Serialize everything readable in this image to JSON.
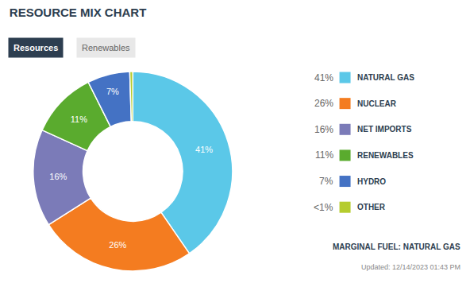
{
  "chart_data": {
    "type": "donut",
    "title": "RESOURCE MIX CHART",
    "tabs": [
      "Resources",
      "Renewables"
    ],
    "categories": [
      "NATURAL GAS",
      "NUCLEAR",
      "NET IMPORTS",
      "RENEWABLES",
      "HYDRO",
      "OTHER"
    ],
    "values": [
      41,
      26,
      16,
      11,
      7,
      0.5
    ],
    "value_labels": [
      "41%",
      "26%",
      "16%",
      "11%",
      "7%",
      "<1%"
    ],
    "colors": [
      "#5bc8e8",
      "#f47c20",
      "#7b7bb8",
      "#5aab2e",
      "#4472c4",
      "#b5cc2e"
    ],
    "data_labels": true,
    "legend": "right",
    "annotations": [
      "MARGINAL FUEL: NATURAL GAS",
      "Updated: 12/14/2023 01:43 PM"
    ]
  }
}
